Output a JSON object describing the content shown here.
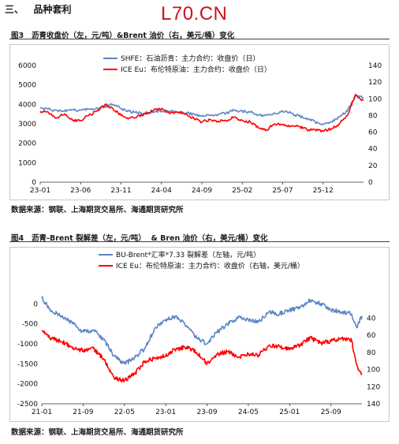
{
  "page": {
    "section_heading": "三、   品种套利",
    "logo_text": "L70.CN"
  },
  "figures": [
    {
      "caption": "图3   沥青收盘价（左，元/吨）&Brent 油价（右，美元/桶）变化",
      "source": "数据来源：钢联、上海期货交易所、海通期货研究所"
    },
    {
      "caption": "图4   沥青-Brent 裂解差（左，元/吨）  & Bren 油价（右，美元/桶）变化",
      "source": "数据来源：钢联、上海期货交易所、海通期货研究所"
    }
  ],
  "chart_data": [
    {
      "type": "line",
      "x_ticks": [
        "23-01",
        "23-06",
        "23-11",
        "24-04",
        "24-09",
        "25-02",
        "25-07",
        "25-12"
      ],
      "x_range": [
        "2023-01",
        "2026-05"
      ],
      "left_axis": {
        "ylim": [
          0,
          6000
        ],
        "ticks": [
          0,
          1000,
          2000,
          3000,
          4000,
          5000,
          6000
        ]
      },
      "right_axis": {
        "ylim": [
          0,
          140
        ],
        "ticks": [
          0,
          20,
          40,
          60,
          80,
          100,
          120,
          140
        ]
      },
      "grid": false,
      "legend_position": "top-center",
      "series": [
        {
          "name": "SHFE：石油沥青：主力合约：收盘价（日）",
          "axis": "left",
          "color": "#5b86c5",
          "points": [
            [
              "2023-01",
              3800
            ],
            [
              "2023-02",
              3760
            ],
            [
              "2023-03",
              3700
            ],
            [
              "2023-04",
              3650
            ],
            [
              "2023-05",
              3720
            ],
            [
              "2023-06",
              3700
            ],
            [
              "2023-07",
              3760
            ],
            [
              "2023-08",
              3820
            ],
            [
              "2023-09",
              3900
            ],
            [
              "2023-10",
              4000
            ],
            [
              "2023-11",
              3780
            ],
            [
              "2023-12",
              3650
            ],
            [
              "2024-01",
              3550
            ],
            [
              "2024-02",
              3550
            ],
            [
              "2024-03",
              3580
            ],
            [
              "2024-04",
              3680
            ],
            [
              "2024-05",
              3660
            ],
            [
              "2024-06",
              3600
            ],
            [
              "2024-07",
              3560
            ],
            [
              "2024-08",
              3500
            ],
            [
              "2024-09",
              3380
            ],
            [
              "2024-10",
              3450
            ],
            [
              "2024-11",
              3480
            ],
            [
              "2024-12",
              3550
            ],
            [
              "2025-01",
              3700
            ],
            [
              "2025-02",
              3650
            ],
            [
              "2025-03",
              3600
            ],
            [
              "2025-04",
              3450
            ],
            [
              "2025-05",
              3450
            ],
            [
              "2025-06",
              3550
            ],
            [
              "2025-07",
              3650
            ],
            [
              "2025-08",
              3550
            ],
            [
              "2025-09",
              3400
            ],
            [
              "2025-10",
              3300
            ],
            [
              "2025-11",
              3100
            ],
            [
              "2025-12",
              3000
            ],
            [
              "2026-01",
              3100
            ],
            [
              "2026-02",
              3350
            ],
            [
              "2026-03",
              3650
            ],
            [
              "2026-04",
              4450
            ],
            [
              "2026-05",
              4350
            ]
          ]
        },
        {
          "name": "ICE Eu：布伦特原油：主力合约：收盘价（日）",
          "axis": "right",
          "color": "#ff0000",
          "points": [
            [
              "2023-01",
              85
            ],
            [
              "2023-02",
              84
            ],
            [
              "2023-03",
              77
            ],
            [
              "2023-04",
              82
            ],
            [
              "2023-05",
              74
            ],
            [
              "2023-06",
              74
            ],
            [
              "2023-07",
              80
            ],
            [
              "2023-08",
              85
            ],
            [
              "2023-09",
              93
            ],
            [
              "2023-10",
              88
            ],
            [
              "2023-11",
              80
            ],
            [
              "2023-12",
              77
            ],
            [
              "2024-01",
              79
            ],
            [
              "2024-02",
              82
            ],
            [
              "2024-03",
              86
            ],
            [
              "2024-04",
              88
            ],
            [
              "2024-05",
              82
            ],
            [
              "2024-06",
              84
            ],
            [
              "2024-07",
              82
            ],
            [
              "2024-08",
              77
            ],
            [
              "2024-09",
              72
            ],
            [
              "2024-10",
              75
            ],
            [
              "2024-11",
              73
            ],
            [
              "2024-12",
              74
            ],
            [
              "2025-01",
              78
            ],
            [
              "2025-02",
              74
            ],
            [
              "2025-03",
              72
            ],
            [
              "2025-04",
              65
            ],
            [
              "2025-05",
              63
            ],
            [
              "2025-06",
              70
            ],
            [
              "2025-07",
              69
            ],
            [
              "2025-08",
              67
            ],
            [
              "2025-09",
              67
            ],
            [
              "2025-10",
              63
            ],
            [
              "2025-11",
              63
            ],
            [
              "2025-12",
              61
            ],
            [
              "2026-01",
              64
            ],
            [
              "2026-02",
              70
            ],
            [
              "2026-03",
              80
            ],
            [
              "2026-04",
              105
            ],
            [
              "2026-05",
              98
            ]
          ]
        }
      ]
    },
    {
      "type": "line",
      "x_ticks": [
        "21-01",
        "21-09",
        "22-05",
        "23-01",
        "23-09",
        "24-05",
        "25-01",
        "25-09"
      ],
      "x_range": [
        "2021-01",
        "2026-03"
      ],
      "left_axis": {
        "ylim": [
          -2500,
          500
        ],
        "ticks": [
          0,
          -500,
          -1000,
          -1500,
          -2000,
          -2500
        ]
      },
      "right_axis": {
        "ylim": [
          0,
          140
        ],
        "reversed": true,
        "ticks": [
          40,
          60,
          80,
          100,
          120,
          140
        ]
      },
      "grid": false,
      "legend_position": "top-center",
      "series": [
        {
          "name": "BU-Brent*汇率*7.33 裂解差（左轴，元/吨）",
          "axis": "left",
          "color": "#5b86c5",
          "points": [
            [
              "2021-01",
              150
            ],
            [
              "2021-03",
              -200
            ],
            [
              "2021-05",
              -300
            ],
            [
              "2021-07",
              -500
            ],
            [
              "2021-09",
              -700
            ],
            [
              "2021-11",
              -650
            ],
            [
              "2022-01",
              -900
            ],
            [
              "2022-03",
              -1300
            ],
            [
              "2022-05",
              -1500
            ],
            [
              "2022-07",
              -1350
            ],
            [
              "2022-09",
              -1100
            ],
            [
              "2022-11",
              -600
            ],
            [
              "2023-01",
              -400
            ],
            [
              "2023-03",
              -300
            ],
            [
              "2023-05",
              -550
            ],
            [
              "2023-07",
              -850
            ],
            [
              "2023-09",
              -1000
            ],
            [
              "2023-11",
              -700
            ],
            [
              "2024-01",
              -500
            ],
            [
              "2024-03",
              -350
            ],
            [
              "2024-05",
              -400
            ],
            [
              "2024-07",
              -450
            ],
            [
              "2024-09",
              -200
            ],
            [
              "2024-11",
              -250
            ],
            [
              "2025-01",
              -150
            ],
            [
              "2025-03",
              -100
            ],
            [
              "2025-05",
              100
            ],
            [
              "2025-07",
              0
            ],
            [
              "2025-09",
              -150
            ],
            [
              "2025-11",
              -200
            ],
            [
              "2026-01",
              -250
            ],
            [
              "2026-02",
              -600
            ],
            [
              "2026-03",
              -300
            ]
          ]
        },
        {
          "name": "ICE Eu：布伦特原油：主力合约：收盘价（右轴，美元/桶）",
          "axis": "right",
          "color": "#ff0000",
          "points": [
            [
              "2021-01",
              55
            ],
            [
              "2021-03",
              64
            ],
            [
              "2021-05",
              68
            ],
            [
              "2021-07",
              74
            ],
            [
              "2021-09",
              78
            ],
            [
              "2021-11",
              75
            ],
            [
              "2022-01",
              88
            ],
            [
              "2022-03",
              110
            ],
            [
              "2022-05",
              113
            ],
            [
              "2022-07",
              105
            ],
            [
              "2022-09",
              90
            ],
            [
              "2022-11",
              87
            ],
            [
              "2023-01",
              84
            ],
            [
              "2023-03",
              76
            ],
            [
              "2023-05",
              74
            ],
            [
              "2023-07",
              80
            ],
            [
              "2023-09",
              93
            ],
            [
              "2023-11",
              82
            ],
            [
              "2024-01",
              79
            ],
            [
              "2024-03",
              86
            ],
            [
              "2024-05",
              82
            ],
            [
              "2024-07",
              83
            ],
            [
              "2024-09",
              72
            ],
            [
              "2024-11",
              73
            ],
            [
              "2025-01",
              77
            ],
            [
              "2025-03",
              71
            ],
            [
              "2025-05",
              63
            ],
            [
              "2025-07",
              69
            ],
            [
              "2025-09",
              67
            ],
            [
              "2025-11",
              63
            ],
            [
              "2026-01",
              66
            ],
            [
              "2026-02",
              95
            ],
            [
              "2026-03",
              105
            ]
          ]
        }
      ]
    }
  ]
}
